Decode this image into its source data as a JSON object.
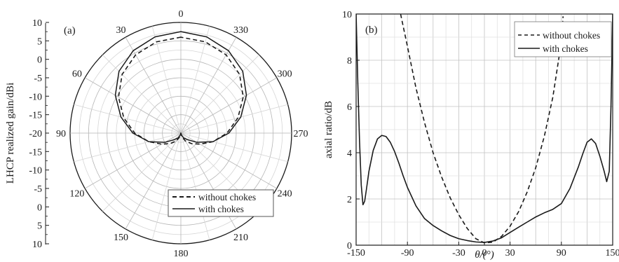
{
  "chart_data": [
    {
      "type": "polar",
      "panel_label": "(a)",
      "ylabel": "LHCP realized gain/dBi",
      "radial_range": [
        -20,
        10
      ],
      "radial_step": 5,
      "radial_tick_labels": [
        "10",
        "5",
        "0",
        "-5",
        "-10",
        "-15",
        "-20",
        "-15",
        "-10",
        "-5",
        "0",
        "5",
        "10"
      ],
      "angle_tick_labels": [
        "0",
        "30",
        "60",
        "90",
        "120",
        "150",
        "180",
        "210",
        "240",
        "270",
        "300",
        "330"
      ],
      "angle_direction": "counterclockwise, 0 at top",
      "grid": true,
      "legend_position": "bottom-right",
      "series": [
        {
          "name": "without chokes",
          "style": "dashed",
          "color": "#1a1a1a",
          "angles": [
            0,
            15,
            30,
            45,
            60,
            75,
            90,
            105,
            120,
            135,
            150,
            165,
            180,
            195,
            210,
            225,
            240,
            255,
            270,
            285,
            300,
            315,
            330,
            345
          ],
          "values": [
            6,
            5.6,
            4.5,
            2.5,
            -0.5,
            -4,
            -7.5,
            -11,
            -14,
            -16,
            -17.5,
            -19,
            -20,
            -19,
            -17.5,
            -16,
            -14,
            -11,
            -7.5,
            -4,
            -0.5,
            2.5,
            4.5,
            5.6
          ]
        },
        {
          "name": "with chokes",
          "style": "solid",
          "color": "#1a1a1a",
          "angles": [
            0,
            15,
            30,
            45,
            60,
            75,
            90,
            105,
            120,
            135,
            150,
            165,
            180,
            195,
            210,
            225,
            240,
            255,
            270,
            285,
            300,
            315,
            330,
            345
          ],
          "values": [
            7.5,
            7,
            5.8,
            3.7,
            0.5,
            -3.2,
            -7,
            -11,
            -15,
            -17.5,
            -18.5,
            -19.5,
            -20,
            -19.5,
            -18.5,
            -17.5,
            -15,
            -11,
            -7,
            -3.2,
            0.5,
            3.7,
            5.8,
            7
          ]
        }
      ]
    },
    {
      "type": "line",
      "panel_label": "(b)",
      "xlabel": "θ/(°)",
      "ylabel": "axial ratio/dB",
      "xlim": [
        -150,
        150
      ],
      "ylim": [
        0,
        10
      ],
      "x_ticks": [
        -150,
        -90,
        -30,
        0,
        30,
        90,
        150
      ],
      "x_tick_labels": [
        "-150",
        "-90",
        "-30",
        "0",
        "30",
        "90",
        "150"
      ],
      "y_ticks": [
        0,
        2,
        4,
        6,
        8,
        10
      ],
      "y_tick_labels": [
        "0",
        "2",
        "4",
        "6",
        "8",
        "10"
      ],
      "grid": true,
      "legend_position": "top-right",
      "series": [
        {
          "name": "without chokes",
          "style": "dashed",
          "color": "#1a1a1a",
          "x": [
            -98,
            -90,
            -80,
            -70,
            -60,
            -50,
            -40,
            -30,
            -20,
            -10,
            0,
            10,
            20,
            30,
            40,
            50,
            60,
            70,
            80,
            90,
            92
          ],
          "y": [
            10,
            8.6,
            6.8,
            5.3,
            4.0,
            2.95,
            2.05,
            1.32,
            0.72,
            0.28,
            0.1,
            0.13,
            0.38,
            0.82,
            1.45,
            2.3,
            3.35,
            4.7,
            6.4,
            8.8,
            9.9
          ]
        },
        {
          "name": "with chokes",
          "style": "solid",
          "color": "#1a1a1a",
          "x": [
            -150,
            -148,
            -146,
            -144,
            -142,
            -140,
            -138,
            -135,
            -130,
            -125,
            -120,
            -115,
            -110,
            -105,
            -100,
            -95,
            -90,
            -80,
            -70,
            -60,
            -50,
            -40,
            -30,
            -20,
            -10,
            0,
            10,
            20,
            30,
            40,
            50,
            60,
            70,
            80,
            90,
            100,
            110,
            115,
            120,
            125,
            130,
            135,
            140,
            143,
            146,
            148,
            150
          ],
          "y": [
            10,
            7,
            4.5,
            2.6,
            1.75,
            1.9,
            2.4,
            3.2,
            4.1,
            4.6,
            4.75,
            4.7,
            4.45,
            4.05,
            3.55,
            3.0,
            2.5,
            1.7,
            1.15,
            0.85,
            0.62,
            0.42,
            0.28,
            0.2,
            0.14,
            0.12,
            0.18,
            0.32,
            0.55,
            0.78,
            1.0,
            1.22,
            1.4,
            1.55,
            1.8,
            2.45,
            3.4,
            3.95,
            4.45,
            4.6,
            4.4,
            3.85,
            3.2,
            2.75,
            3.2,
            6,
            10
          ]
        }
      ]
    }
  ]
}
